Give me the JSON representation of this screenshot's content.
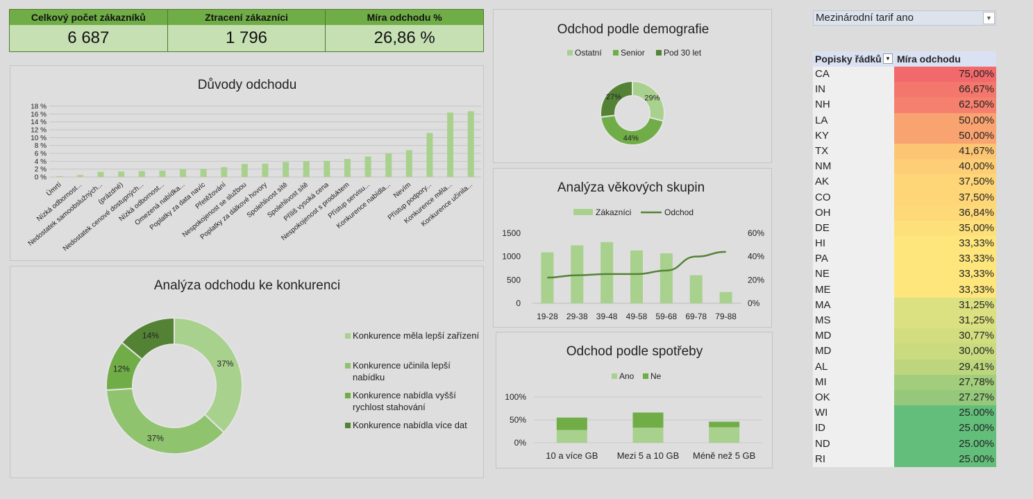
{
  "kpis": [
    {
      "label": "Celkový počet zákazníků",
      "value": "6 687"
    },
    {
      "label": "Ztracení zákazníci",
      "value": "1 796"
    },
    {
      "label": "Míra odchodu %",
      "value": "26,86 %"
    }
  ],
  "slicer": {
    "value": "Mezinárodní tarif ano"
  },
  "pivot": {
    "col1": "Popisky řádků",
    "col2": "Míra odchodu",
    "rows": [
      {
        "state": "CA",
        "rate": "75,00%",
        "color": "#f2696b"
      },
      {
        "state": "IN",
        "rate": "66,67%",
        "color": "#f4776d"
      },
      {
        "state": "NH",
        "rate": "62,50%",
        "color": "#f5806e"
      },
      {
        "state": "LA",
        "rate": "50,00%",
        "color": "#f9a371"
      },
      {
        "state": "KY",
        "rate": "50,00%",
        "color": "#f9a371"
      },
      {
        "state": "TX",
        "rate": "41,67%",
        "color": "#fcc574"
      },
      {
        "state": "NM",
        "rate": "40,00%",
        "color": "#fdce76"
      },
      {
        "state": "AK",
        "rate": "37,50%",
        "color": "#fed677"
      },
      {
        "state": "CO",
        "rate": "37,50%",
        "color": "#fed677"
      },
      {
        "state": "OH",
        "rate": "36,84%",
        "color": "#fed978"
      },
      {
        "state": "DE",
        "rate": "35,00%",
        "color": "#fee07a"
      },
      {
        "state": "HI",
        "rate": "33,33%",
        "color": "#fee67c"
      },
      {
        "state": "PA",
        "rate": "33,33%",
        "color": "#fee67c"
      },
      {
        "state": "NE",
        "rate": "33,33%",
        "color": "#fee67c"
      },
      {
        "state": "ME",
        "rate": "33,33%",
        "color": "#fee67c"
      },
      {
        "state": "MA",
        "rate": "31,25%",
        "color": "#dbe081"
      },
      {
        "state": "MS",
        "rate": "31,25%",
        "color": "#dbe081"
      },
      {
        "state": "MD",
        "rate": "30,77%",
        "color": "#d2dd80"
      },
      {
        "state": "MD",
        "rate": "30,00%",
        "color": "#c9da7f"
      },
      {
        "state": "AL",
        "rate": "29,41%",
        "color": "#bdd67e"
      },
      {
        "state": "MI",
        "rate": "27,78%",
        "color": "#a2cd7c"
      },
      {
        "state": "OK",
        "rate": "27.27%",
        "color": "#95c87b"
      },
      {
        "state": "WI",
        "rate": "25.00%",
        "color": "#63be7b"
      },
      {
        "state": "ID",
        "rate": "25.00%",
        "color": "#63be7b"
      },
      {
        "state": "ND",
        "rate": "25.00%",
        "color": "#63be7b"
      },
      {
        "state": "RI",
        "rate": "25.00%",
        "color": "#63be7b"
      }
    ]
  },
  "chart_data": [
    {
      "type": "bar",
      "title": "Důvody odchodu",
      "categories": [
        "Úmrtí",
        "Nízká odbornost...",
        "Nedostatek samoobslužných...",
        "(prázdné)",
        "Nedostatek cenové dostupných...",
        "Nízká odbornost...",
        "Omezená nabídka...",
        "Poplatky za data navíc",
        "Přetěžování",
        "Nespokojenost se službou",
        "Poplatky za dálkové hovory",
        "Spolehlivost sítě",
        "Spolehlivost sítě",
        "Příliš vysoká cena",
        "Nespokojenost s produktem",
        "Přístup servisu...",
        "Konkurence nabídla...",
        "Nevím",
        "Přístup podpory...",
        "Konkurence měla...",
        "Konkurence učinila..."
      ],
      "values": [
        0.2,
        0.5,
        1.3,
        1.4,
        1.5,
        1.6,
        2.0,
        2.1,
        2.5,
        3.3,
        3.4,
        3.8,
        4.0,
        4.1,
        4.6,
        5.2,
        6.0,
        6.8,
        11.2,
        16.4,
        16.7
      ],
      "yticks": [
        "0 %",
        "2 %",
        "4 %",
        "6 %",
        "8 %",
        "10 %",
        "12 %",
        "14 %",
        "16 %",
        "18 %"
      ],
      "ylim": [
        0,
        18
      ],
      "color": "#a9d18e"
    },
    {
      "type": "pie",
      "title": "Odchod podle demografie",
      "legend": [
        "Ostatní",
        "Senior",
        "Pod 30 let"
      ],
      "values": [
        29,
        44,
        27
      ],
      "labels": [
        "29%",
        "44%",
        "27%"
      ],
      "colors": [
        "#a9d18e",
        "#70ad47",
        "#548235"
      ]
    },
    {
      "type": "bar",
      "title": "Analýza věkových skupin",
      "categories": [
        "19-28",
        "29-38",
        "39-48",
        "49-58",
        "59-68",
        "69-78",
        "79-88"
      ],
      "series": [
        {
          "name": "Zákazníci",
          "values": [
            1090,
            1240,
            1310,
            1130,
            1070,
            600,
            240
          ]
        },
        {
          "name": "Odchod",
          "values": [
            22,
            24,
            25,
            25,
            28,
            40,
            44
          ]
        }
      ],
      "yticks_left": [
        "0",
        "500",
        "1000",
        "1500"
      ],
      "yticks_right": [
        "0%",
        "20%",
        "40%",
        "60%"
      ],
      "ylim_left": [
        0,
        1500
      ],
      "ylim_right": [
        0,
        60
      ]
    },
    {
      "type": "bar",
      "title": "Odchod podle spotřeby",
      "categories": [
        "10 a více GB",
        "Mezi 5 a 10 GB",
        "Méně než 5 GB"
      ],
      "series": [
        {
          "name": "Ano",
          "values": [
            28,
            33,
            34
          ]
        },
        {
          "name": "Ne",
          "values": [
            27,
            33,
            12
          ]
        }
      ],
      "yticks": [
        "0%",
        "50%",
        "100%"
      ],
      "ylim": [
        0,
        100
      ]
    },
    {
      "type": "pie",
      "title": "Analýza odchodu ke konkurenci",
      "legend": [
        "Konkurence měla lepší zařízení",
        "Konkurence učinila lepší nabídku",
        "Konkurence nabídla vyšší rychlost stahování",
        "Konkurence nabídla více dat"
      ],
      "values": [
        37,
        37,
        12,
        14
      ],
      "labels": [
        "37%",
        "37%",
        "12%",
        "14%"
      ],
      "colors": [
        "#a9d18e",
        "#8fc36e",
        "#70ad47",
        "#548235"
      ]
    }
  ]
}
